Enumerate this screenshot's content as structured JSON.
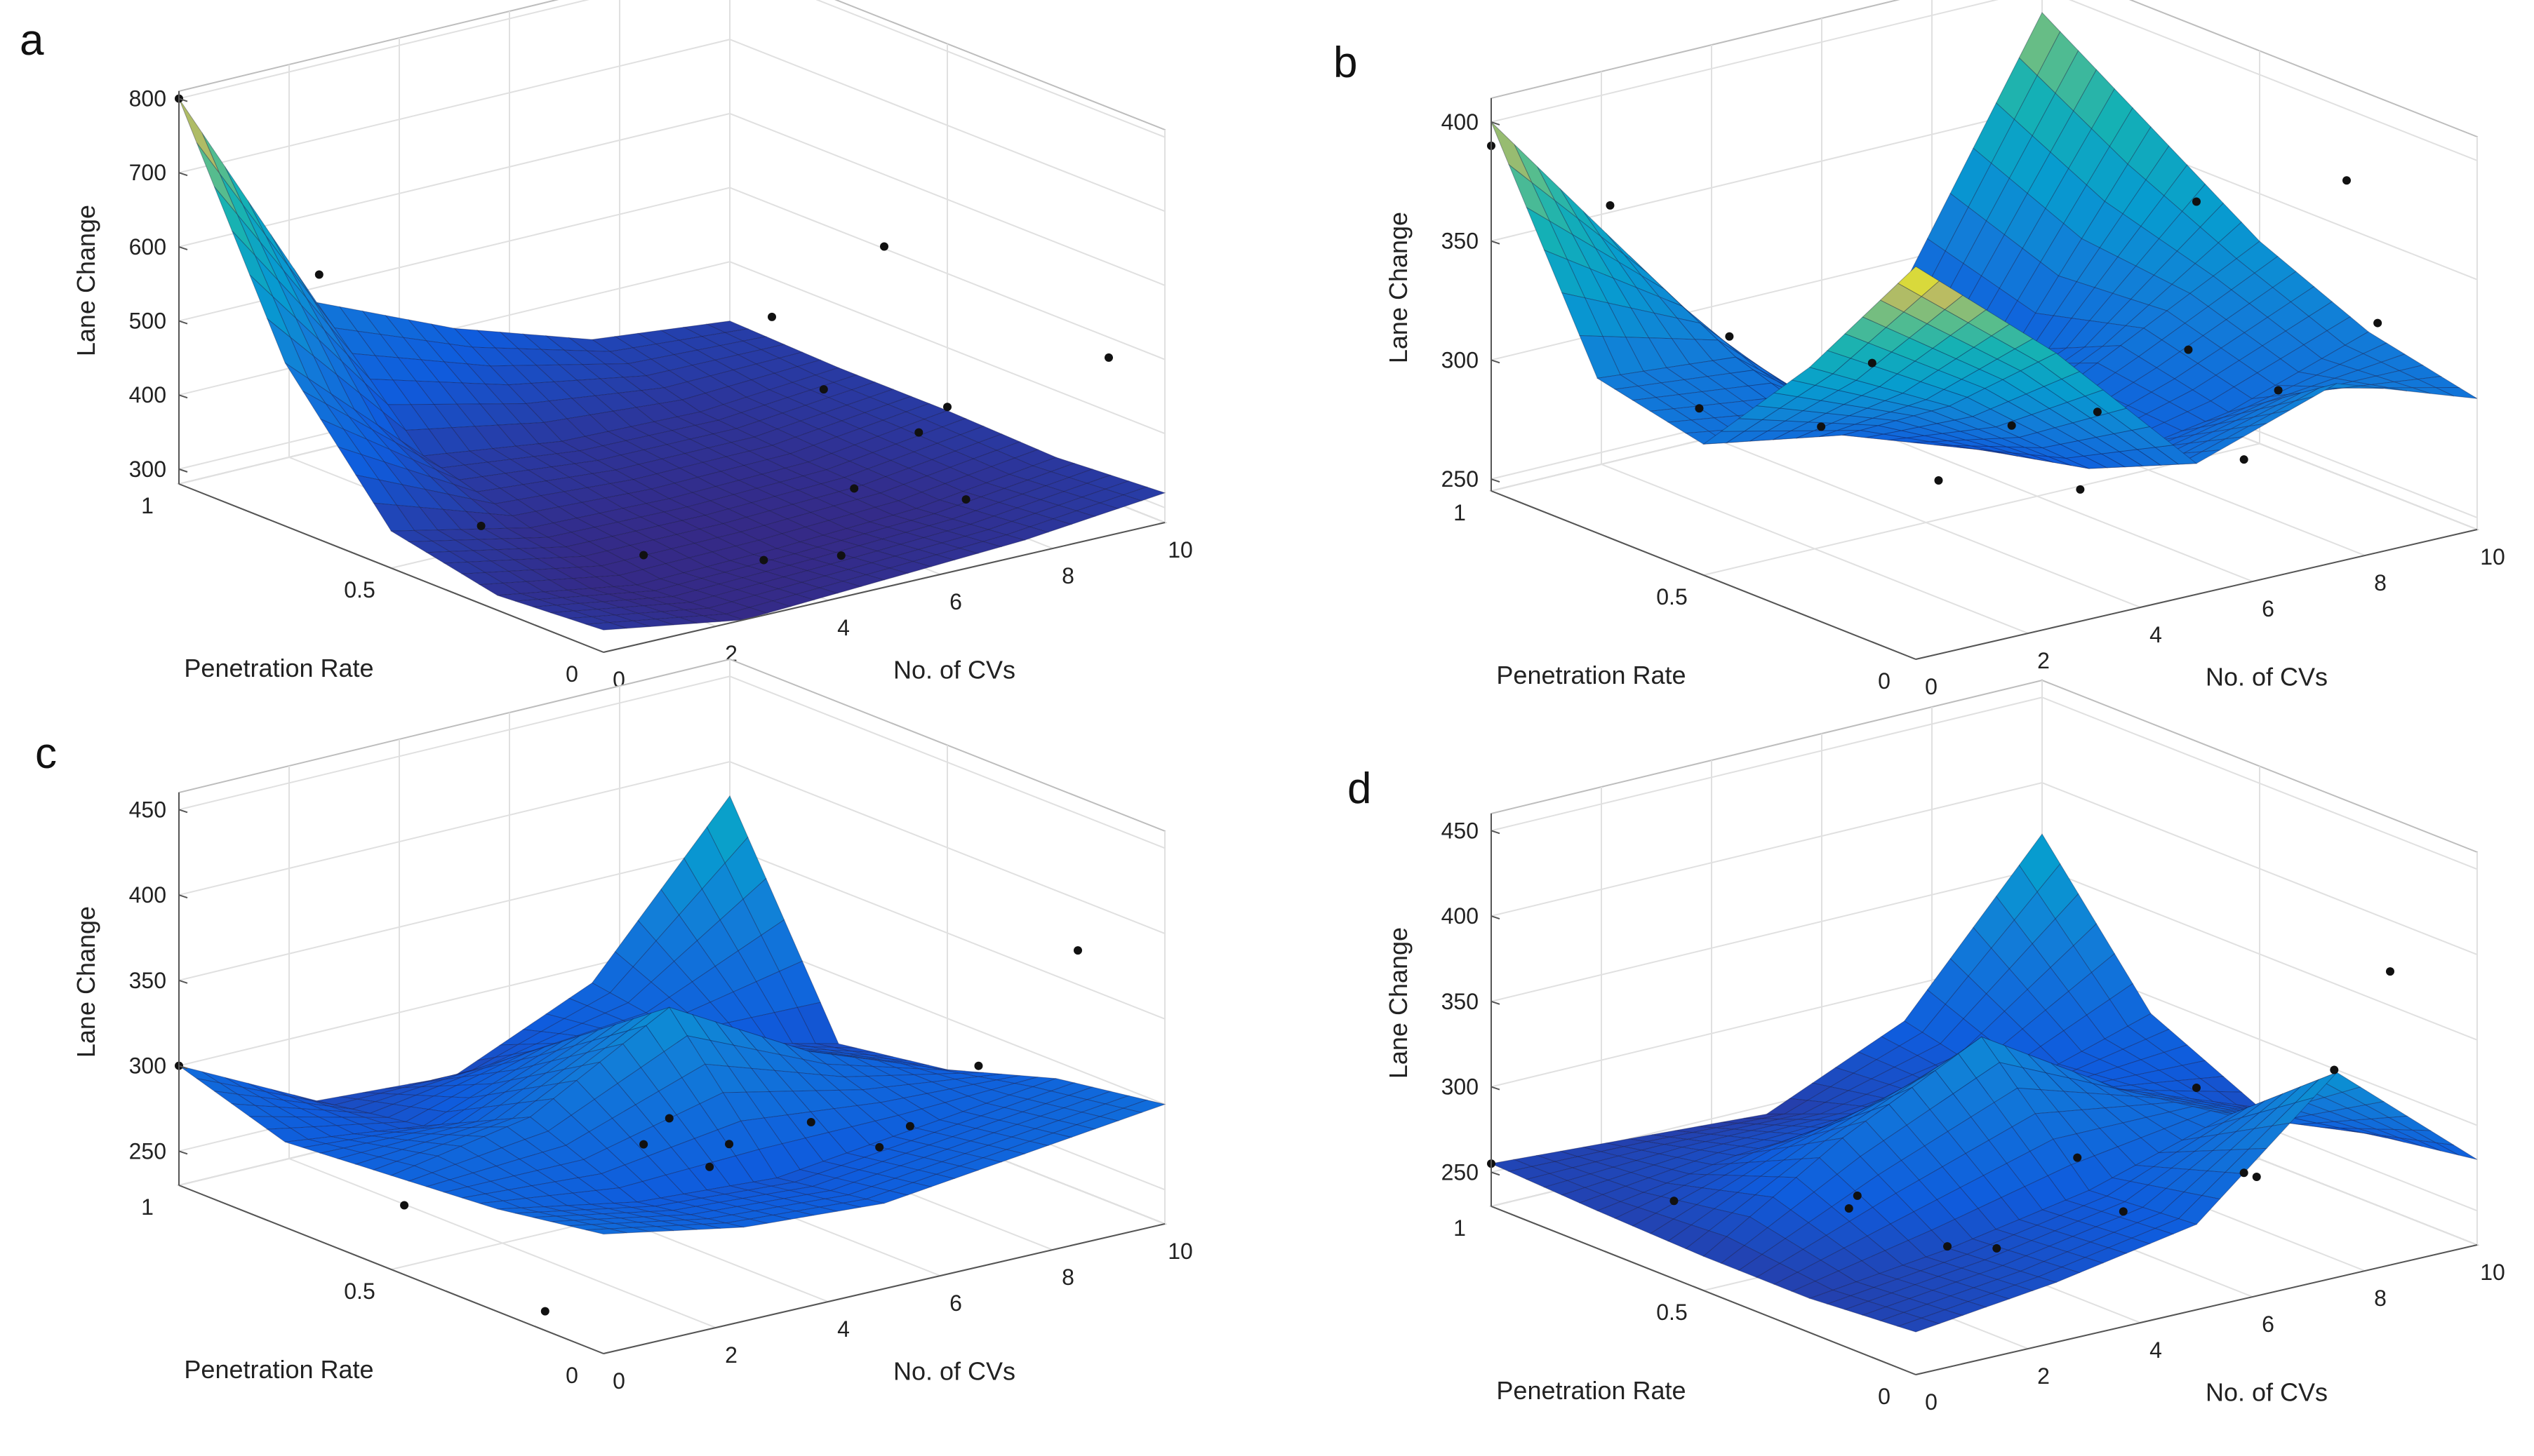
{
  "figure": {
    "panel_count": 4
  },
  "chart_data": [
    {
      "panel": "a",
      "type": "surface",
      "zlabel": "Lane Change",
      "xlabel": "No. of CVs",
      "ylabel": "Penetration Rate",
      "x_ticks": [
        "0",
        "2",
        "4",
        "6",
        "8",
        "10"
      ],
      "y_ticks": [
        "0",
        "0.5",
        "1"
      ],
      "z_ticks": [
        "300",
        "400",
        "500",
        "600",
        "700",
        "800"
      ],
      "xlim": [
        0,
        10
      ],
      "ylim": [
        0,
        1
      ],
      "zlim": [
        280,
        810
      ],
      "surface": {
        "x": [
          0,
          2.5,
          5,
          7.5,
          10
        ],
        "y": [
          0,
          0.25,
          0.5,
          0.75,
          1
        ],
        "z": [
          [
            310,
            280,
            290,
            300,
            320
          ],
          [
            300,
            270,
            275,
            285,
            310
          ],
          [
            330,
            290,
            285,
            290,
            315
          ],
          [
            500,
            330,
            305,
            300,
            315
          ],
          [
            800,
            480,
            400,
            340,
            320
          ]
        ]
      },
      "points": [
        {
          "x": 0,
          "y": 1,
          "z": 800
        },
        {
          "x": 1,
          "y": 0.8,
          "z": 590
        },
        {
          "x": 2,
          "y": 0.55,
          "z": 290
        },
        {
          "x": 3,
          "y": 0.3,
          "z": 290
        },
        {
          "x": 4,
          "y": 0.15,
          "z": 300
        },
        {
          "x": 5,
          "y": 0.1,
          "z": 300
        },
        {
          "x": 6,
          "y": 0.2,
          "z": 350
        },
        {
          "x": 7,
          "y": 0.4,
          "z": 420
        },
        {
          "x": 10,
          "y": 0.5,
          "z": 320
        },
        {
          "x": 3,
          "y": 0,
          "z": 680
        },
        {
          "x": 5,
          "y": 0,
          "z": 740
        },
        {
          "x": 6,
          "y": 0.05,
          "z": 460
        },
        {
          "x": 9,
          "y": 0,
          "z": 520
        },
        {
          "x": 8,
          "y": 0.2,
          "z": 300
        }
      ]
    },
    {
      "panel": "b",
      "type": "surface",
      "zlabel": "Lane Change",
      "xlabel": "No. of CVs",
      "ylabel": "Penetration Rate",
      "x_ticks": [
        "0",
        "2",
        "4",
        "6",
        "8",
        "10"
      ],
      "y_ticks": [
        "0",
        "0.5",
        "1"
      ],
      "z_ticks": [
        "250",
        "300",
        "350",
        "400"
      ],
      "xlim": [
        0,
        10
      ],
      "ylim": [
        0,
        1
      ],
      "zlim": [
        245,
        410
      ],
      "surface": {
        "x": [
          0,
          2.5,
          5,
          7.5,
          10
        ],
        "y": [
          0,
          0.25,
          0.5,
          0.75,
          1
        ],
        "z": [
          [
            410,
            360,
            300,
            320,
            300
          ],
          [
            350,
            320,
            280,
            290,
            310
          ],
          [
            300,
            290,
            270,
            300,
            330
          ],
          [
            310,
            305,
            260,
            280,
            360
          ],
          [
            400,
            330,
            250,
            290,
            390
          ]
        ]
      },
      "points": [
        {
          "x": 0,
          "y": 1,
          "z": 390
        },
        {
          "x": 1,
          "y": 0.85,
          "z": 370
        },
        {
          "x": 2,
          "y": 0.7,
          "z": 320
        },
        {
          "x": 2.5,
          "y": 0.55,
          "z": 290
        },
        {
          "x": 4,
          "y": 0.3,
          "z": 300
        },
        {
          "x": 5,
          "y": 0.6,
          "z": 250
        },
        {
          "x": 6,
          "y": 0.4,
          "z": 255
        },
        {
          "x": 7,
          "y": 0.15,
          "z": 280
        },
        {
          "x": 5,
          "y": 0,
          "z": 410
        },
        {
          "x": 4,
          "y": 0.1,
          "z": 320
        },
        {
          "x": 8,
          "y": 0.2,
          "z": 300
        },
        {
          "x": 9,
          "y": 0.1,
          "z": 330
        },
        {
          "x": 10,
          "y": 0.3,
          "z": 370
        },
        {
          "x": 9.5,
          "y": 0.6,
          "z": 280
        },
        {
          "x": 3,
          "y": 0.9,
          "z": 270
        },
        {
          "x": 1.5,
          "y": 0.3,
          "z": 340
        }
      ]
    },
    {
      "panel": "c",
      "type": "surface",
      "zlabel": "Lane Change",
      "xlabel": "No. of CVs",
      "ylabel": "Penetration Rate",
      "x_ticks": [
        "0",
        "2",
        "4",
        "6",
        "8",
        "10"
      ],
      "y_ticks": [
        "0",
        "0.5",
        "1"
      ],
      "z_ticks": [
        "250",
        "300",
        "350",
        "400",
        "450"
      ],
      "xlim": [
        0,
        10
      ],
      "ylim": [
        0,
        1
      ],
      "zlim": [
        230,
        460
      ],
      "surface": {
        "x": [
          0,
          2.5,
          5,
          7.5,
          10
        ],
        "y": [
          0,
          0.25,
          0.5,
          0.75,
          1
        ],
        "z": [
          [
            300,
            285,
            280,
            290,
            300
          ],
          [
            290,
            275,
            270,
            280,
            290
          ],
          [
            285,
            300,
            345,
            300,
            270
          ],
          [
            280,
            270,
            300,
            280,
            260
          ],
          [
            300,
            260,
            255,
            290,
            380
          ]
        ]
      },
      "points": [
        {
          "x": 0,
          "y": 1,
          "z": 300
        },
        {
          "x": 1,
          "y": 0.6,
          "z": 250
        },
        {
          "x": 2,
          "y": 0.4,
          "z": 200
        },
        {
          "x": 3,
          "y": 0.3,
          "z": 300
        },
        {
          "x": 3,
          "y": 0.1,
          "z": 320
        },
        {
          "x": 5,
          "y": 0.5,
          "z": 280
        },
        {
          "x": 6,
          "y": 0.3,
          "z": 290
        },
        {
          "x": 7,
          "y": 0.2,
          "z": 290
        },
        {
          "x": 6.5,
          "y": 0.6,
          "z": 230
        },
        {
          "x": 8,
          "y": 0.4,
          "z": 250
        },
        {
          "x": 9,
          "y": 0.3,
          "z": 300
        },
        {
          "x": 10,
          "y": 0.2,
          "z": 370
        }
      ]
    },
    {
      "panel": "d",
      "type": "surface",
      "zlabel": "Lane Change",
      "xlabel": "No. of CVs",
      "ylabel": "Penetration Rate",
      "x_ticks": [
        "0",
        "2",
        "4",
        "6",
        "8",
        "10"
      ],
      "y_ticks": [
        "0",
        "0.5",
        "1"
      ],
      "z_ticks": [
        "250",
        "300",
        "350",
        "400",
        "450"
      ],
      "xlim": [
        0,
        10
      ],
      "ylim": [
        0,
        1
      ],
      "zlim": [
        230,
        460
      ],
      "surface": {
        "x": [
          0,
          2.5,
          5,
          7.5,
          10
        ],
        "y": [
          0,
          0.25,
          0.5,
          0.75,
          1
        ],
        "z": [
          [
            255,
            265,
            280,
            350,
            280
          ],
          [
            250,
            260,
            275,
            300,
            270
          ],
          [
            250,
            300,
            340,
            290,
            260
          ],
          [
            252,
            265,
            270,
            265,
            290
          ],
          [
            255,
            250,
            245,
            280,
            370
          ]
        ]
      },
      "points": [
        {
          "x": 0,
          "y": 1,
          "z": 255
        },
        {
          "x": 1,
          "y": 0.7,
          "z": 255
        },
        {
          "x": 2,
          "y": 0.4,
          "z": 280
        },
        {
          "x": 3,
          "y": 0.55,
          "z": 250
        },
        {
          "x": 4,
          "y": 0.45,
          "z": 230
        },
        {
          "x": 4.5,
          "y": 0.4,
          "z": 230
        },
        {
          "x": 5,
          "y": 0,
          "z": 360
        },
        {
          "x": 6,
          "y": 0.3,
          "z": 250
        },
        {
          "x": 7,
          "y": 0.15,
          "z": 280
        },
        {
          "x": 8,
          "y": 0.25,
          "z": 260
        },
        {
          "x": 9,
          "y": 0.2,
          "z": 320
        },
        {
          "x": 10,
          "y": 0.2,
          "z": 370
        },
        {
          "x": 7.5,
          "y": 0.6,
          "z": 240
        }
      ]
    }
  ]
}
